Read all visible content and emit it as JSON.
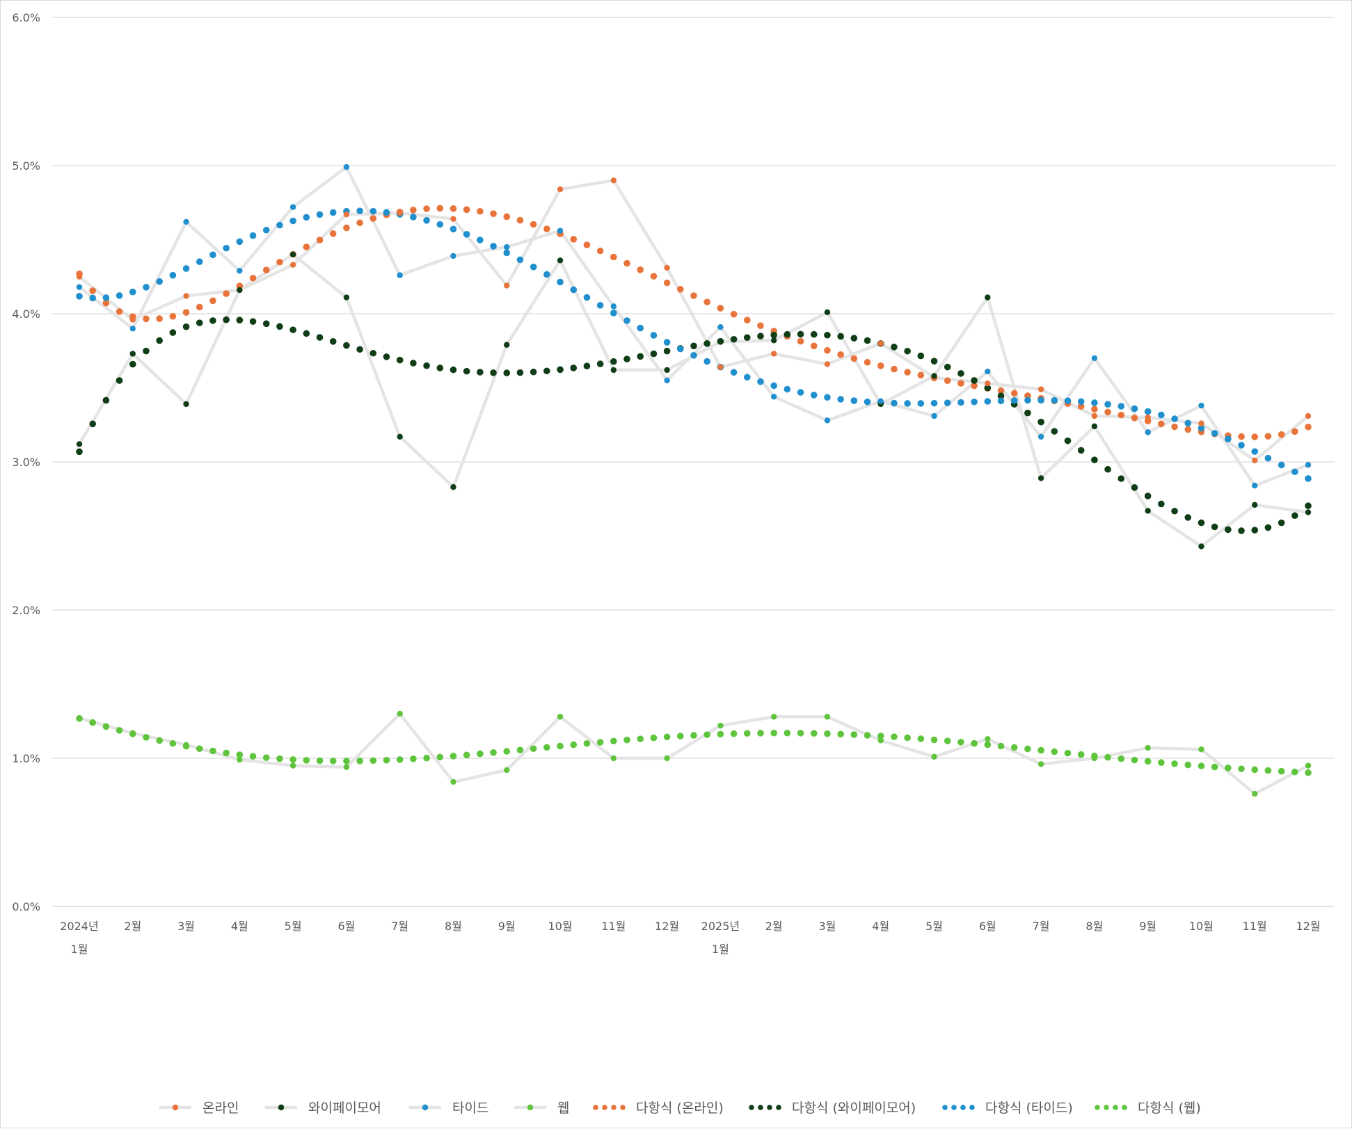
{
  "chart_data": {
    "type": "line",
    "title": "",
    "xlabel": "",
    "ylabel": "",
    "ylim": [
      0,
      6
    ],
    "ytick_values": [
      0,
      1,
      2,
      3,
      4,
      5,
      6
    ],
    "ytick_labels": [
      "0.0%",
      "1.0%",
      "2.0%",
      "3.0%",
      "4.0%",
      "5.0%",
      "6.0%"
    ],
    "grid": true,
    "legend_position": "bottom",
    "x_tick_labels": [
      [
        "2024년",
        "1월"
      ],
      [
        "2월"
      ],
      [
        "3월"
      ],
      [
        "4월"
      ],
      [
        "5월"
      ],
      [
        "6월"
      ],
      [
        "7월"
      ],
      [
        "8월"
      ],
      [
        "9월"
      ],
      [
        "10월"
      ],
      [
        "11월"
      ],
      [
        "12월"
      ],
      [
        "2025년",
        "1월"
      ],
      [
        "2월"
      ],
      [
        "3월"
      ],
      [
        "4월"
      ],
      [
        "5월"
      ],
      [
        "6월"
      ],
      [
        "7월"
      ],
      [
        "8월"
      ],
      [
        "9월"
      ],
      [
        "10월"
      ],
      [
        "11월"
      ],
      [
        "12월"
      ]
    ],
    "series_line_color": "#e4e4e4",
    "series": [
      {
        "name": "온라인",
        "color": "#e8743b",
        "values": [
          4.25,
          3.96,
          4.12,
          4.16,
          4.33,
          4.67,
          4.68,
          4.64,
          4.19,
          4.84,
          4.9,
          4.31,
          3.64,
          3.73,
          3.66,
          3.8,
          3.57,
          3.53,
          3.49,
          3.31,
          3.3,
          3.26,
          3.01,
          3.31
        ]
      },
      {
        "name": "와이페이모어",
        "color": "#0e3d16",
        "values": [
          3.12,
          3.73,
          3.39,
          4.16,
          4.4,
          4.11,
          3.17,
          2.83,
          3.79,
          4.36,
          3.62,
          3.62,
          3.81,
          3.82,
          4.01,
          3.39,
          3.58,
          4.11,
          2.89,
          3.24,
          2.67,
          2.43,
          2.71,
          2.66
        ]
      },
      {
        "name": "타이드",
        "color": "#1f8fce",
        "values": [
          4.18,
          3.9,
          4.62,
          4.29,
          4.72,
          4.99,
          4.26,
          4.39,
          4.45,
          4.56,
          4.05,
          3.55,
          3.91,
          3.44,
          3.28,
          3.41,
          3.31,
          3.61,
          3.17,
          3.7,
          3.2,
          3.38,
          2.84,
          2.98
        ]
      },
      {
        "name": "웹",
        "color": "#5ec43c",
        "values": [
          1.27,
          1.17,
          1.09,
          0.99,
          0.95,
          0.94,
          1.3,
          0.84,
          0.92,
          1.28,
          1.0,
          1.0,
          1.22,
          1.28,
          1.28,
          1.12,
          1.01,
          1.13,
          0.96,
          1.0,
          1.07,
          1.06,
          0.76,
          0.95
        ]
      }
    ],
    "trendlines": [
      {
        "name": "다항식 (온라인)",
        "color": "#e8743b",
        "series_index": 0
      },
      {
        "name": "다항식 (와이페이모어)",
        "color": "#0e3d16",
        "series_index": 1
      },
      {
        "name": "다항식 (타이드)",
        "color": "#1f8fce",
        "series_index": 2
      },
      {
        "name": "다항식 (웹)",
        "color": "#5ec43c",
        "series_index": 3
      }
    ]
  }
}
